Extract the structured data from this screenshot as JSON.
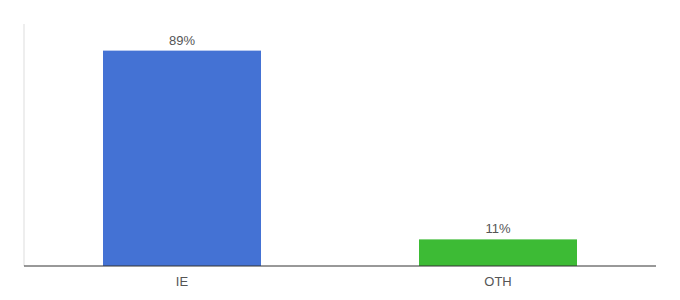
{
  "chart_data": {
    "type": "bar",
    "categories": [
      "IE",
      "OTH"
    ],
    "values": [
      89,
      11
    ],
    "value_labels": [
      "89%",
      "11%"
    ],
    "colors": [
      "#4472d4",
      "#3dbb35"
    ],
    "ylim": [
      0,
      100
    ],
    "data_labels": true,
    "tick_labels": "x"
  }
}
